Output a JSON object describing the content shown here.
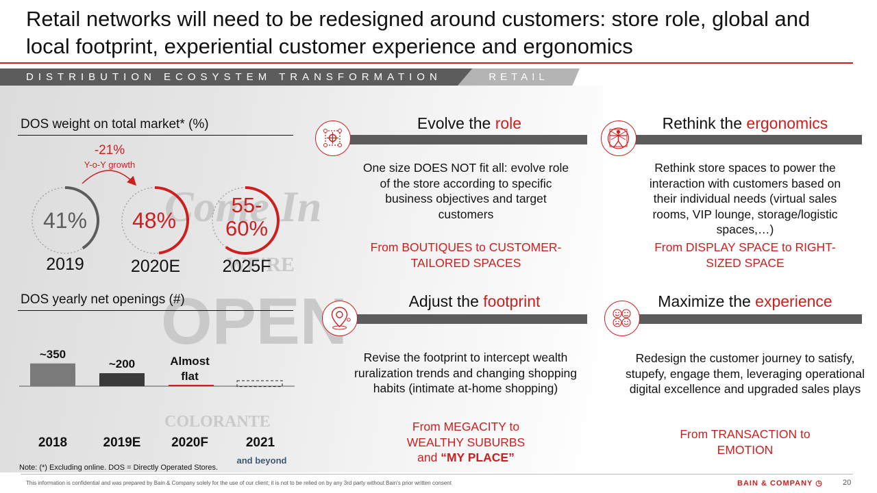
{
  "title": "Retail networks will need to be redesigned around customers: store role, global and local footprint, experiential customer experience and ergonomics",
  "banner": {
    "section": "DISTRIBUTION ECOSYSTEM TRANSFORMATION",
    "tag": "RETAIL"
  },
  "background_signage": [
    "Come In",
    "WE'RE",
    "OPEN",
    "COLORANTE"
  ],
  "weight": {
    "heading": "DOS weight on total market* (%)",
    "growth_value": "-21%",
    "growth_label": "Y-o-Y growth",
    "rings": [
      {
        "label": "41%",
        "year": "2019",
        "fraction": 0.41,
        "color": "#5c5c5c",
        "year_color": "#5c5c5c"
      },
      {
        "label": "48%",
        "year": "2020E",
        "fraction": 0.48,
        "color": "#cc1f1f",
        "year_color": "#cc1f1f"
      },
      {
        "label": "55-60%",
        "year": "2025F",
        "fraction": 0.6,
        "color": "#cc1f1f",
        "year_color": "#cc1f1f"
      }
    ]
  },
  "openings": {
    "heading": "DOS yearly net openings (#)",
    "bars": [
      {
        "label": "~350",
        "year": "2018",
        "value": 350,
        "color": "#7a7a7a",
        "label_color": "#111111",
        "year_color": "#111111"
      },
      {
        "label": "~200",
        "year": "2019E",
        "value": 200,
        "color": "#3a3a3a",
        "label_color": "#111111",
        "year_color": "#111111"
      },
      {
        "label": "Almost flat",
        "year": "2020F",
        "value": 0,
        "color": "#cc1f1f",
        "label_color": "#cc1f1f",
        "year_color": "#cc1f1f"
      },
      {
        "label": "",
        "year": "2021",
        "sub": "and beyond",
        "value": -70,
        "color": "dashed",
        "label_color": "#111111",
        "year_color": "#3e5872"
      }
    ]
  },
  "note": "Note: (*) Excluding online. DOS = Directly Operated Stores.",
  "cards": {
    "role": {
      "title_prefix": "Evolve the ",
      "title_accent": "role",
      "icon": "target-crosshair-icon",
      "body": "One size DOES NOT fit all: evolve role of the store according to specific business objectives and target customers",
      "from": "From BOUTIQUES to CUSTOMER-TAILORED SPACES"
    },
    "ergonomics": {
      "title_prefix": "Rethink the ",
      "title_accent": "ergonomics",
      "icon": "vitruvian-man-icon",
      "body": "Rethink store spaces to power the interaction with customers based on their individual needs (virtual sales rooms, VIP lounge, storage/logistic spaces,…)",
      "from": "From DISPLAY SPACE to RIGHT-SIZED SPACE"
    },
    "footprint": {
      "title_prefix": "Adjust the ",
      "title_accent": "footprint",
      "icon": "map-pin-icon",
      "body": "Revise the footprint to intercept wealth ruralization trends and changing shopping habits (intimate at-home shopping)",
      "from_line1": "From MEGACITY to",
      "from_line2": "WEALTHY SUBURBS",
      "from_line3_prefix": "and ",
      "from_line3_bold": "“MY PLACE”"
    },
    "experience": {
      "title_prefix": "Maximize the ",
      "title_accent": "experience",
      "icon": "emotion-faces-icon",
      "body": "Redesign the customer journey to satisfy, stupefy, engage them, leveraging operational digital excellence and upgraded sales plays",
      "from": "From TRANSACTION to EMOTION"
    }
  },
  "footer": {
    "disclaimer": "This information is confidential and was prepared by Bain & Company solely for the use of our client; it is not to be relied on by any 3rd party without Bain's prior written consent",
    "brand": "BAIN & COMPANY",
    "page": "20"
  },
  "colors": {
    "accent": "#cc1f1f",
    "banner": "#5c5c5c",
    "banner_tag": "#b4b4b4"
  }
}
